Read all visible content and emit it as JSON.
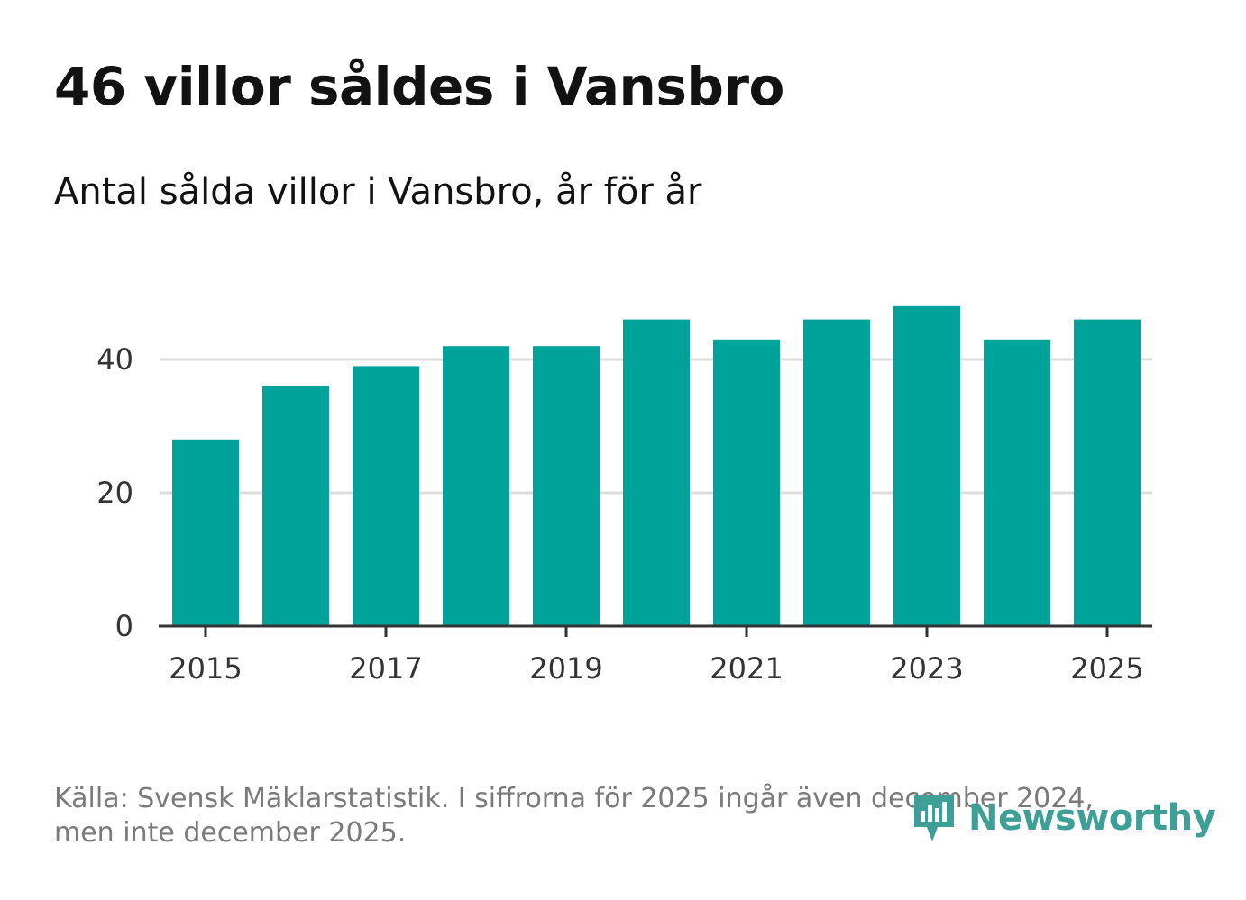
{
  "header": {
    "title": "46 villor såldes i Vansbro",
    "subtitle": "Antal sålda villor i Vansbro, år för år"
  },
  "footer": {
    "source_line1": "Källa: Svensk Mäklarstatistik. I siffrorna för 2025 ingår även december 2024,",
    "source_line2": "men inte december 2025."
  },
  "logo": {
    "text": "Newsworthy",
    "icon": "newsworthy-logo-icon"
  },
  "colors": {
    "bar": "#00a39a",
    "grid": "#dddddd",
    "axis": "#333333",
    "logo": "#3d9f96"
  },
  "chart_data": {
    "type": "bar",
    "title": "Antal sålda villor i Vansbro, år för år",
    "xlabel": "",
    "ylabel": "",
    "categories": [
      "2015",
      "2016",
      "2017",
      "2018",
      "2019",
      "2020",
      "2021",
      "2022",
      "2023",
      "2024",
      "2025"
    ],
    "values": [
      28,
      36,
      39,
      42,
      42,
      46,
      43,
      46,
      48,
      43,
      46
    ],
    "x_tick_labels": [
      "2015",
      "2017",
      "2019",
      "2021",
      "2023",
      "2025"
    ],
    "y_ticks": [
      0,
      20,
      40
    ],
    "ylim": [
      0,
      48
    ],
    "grid": true,
    "legend": "none"
  }
}
